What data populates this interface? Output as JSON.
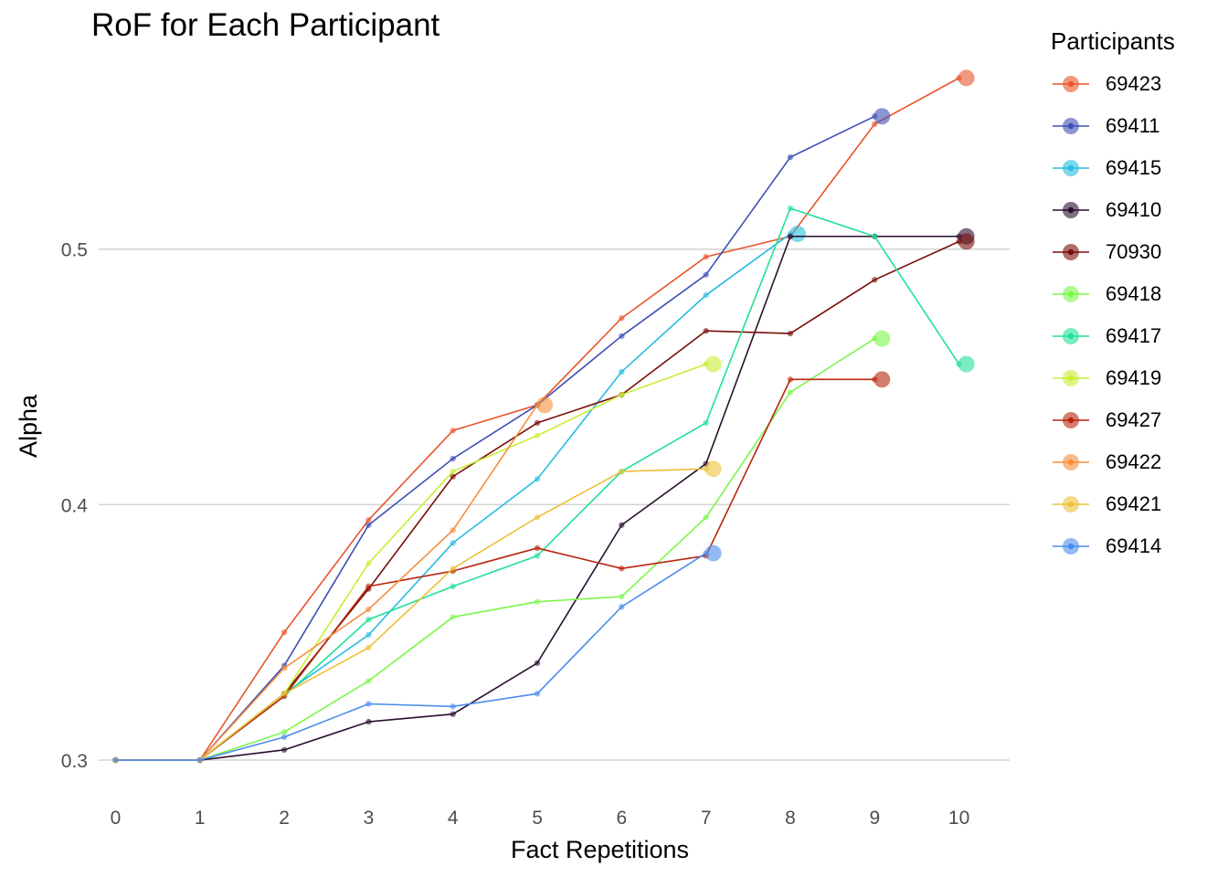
{
  "chart_data": {
    "type": "line",
    "title": "RoF for Each Participant",
    "xlabel": "Fact Repetitions",
    "ylabel": "Alpha",
    "x_ticks": [
      0,
      1,
      2,
      3,
      4,
      5,
      6,
      7,
      8,
      9,
      10
    ],
    "y_ticks": [
      "0.3",
      "0.4",
      "0.5"
    ],
    "xlim": [
      -0.2,
      10.6
    ],
    "ylim": [
      0.29,
      0.575
    ],
    "grid": "horizontal major lines",
    "legend": {
      "title": "Participants",
      "position": "right"
    },
    "series": [
      {
        "name": "69423",
        "color": "#E8552B",
        "x": [
          0,
          1,
          2,
          3,
          4,
          5,
          6,
          7,
          8,
          9,
          10
        ],
        "y": [
          0.3,
          0.3,
          0.35,
          0.394,
          0.429,
          0.439,
          0.473,
          0.497,
          0.505,
          0.549,
          0.567
        ]
      },
      {
        "name": "69411",
        "color": "#3F4FB5",
        "x": [
          0,
          1,
          2,
          3,
          4,
          5,
          6,
          7,
          8,
          9
        ],
        "y": [
          0.3,
          0.3,
          0.337,
          0.392,
          0.418,
          0.439,
          0.466,
          0.49,
          0.536,
          0.552
        ]
      },
      {
        "name": "69415",
        "color": "#28BCE0",
        "x": [
          0,
          1,
          2,
          3,
          4,
          5,
          6,
          7,
          8
        ],
        "y": [
          0.3,
          0.3,
          0.326,
          0.349,
          0.385,
          0.41,
          0.452,
          0.482,
          0.506
        ]
      },
      {
        "name": "69410",
        "color": "#2A0F30",
        "x": [
          0,
          1,
          2,
          3,
          4,
          5,
          6,
          7,
          8,
          9,
          10
        ],
        "y": [
          0.3,
          0.3,
          0.304,
          0.315,
          0.318,
          0.338,
          0.392,
          0.416,
          0.505,
          0.505,
          0.505
        ]
      },
      {
        "name": "70930",
        "color": "#7A0E0A",
        "x": [
          0,
          1,
          2,
          3,
          4,
          5,
          6,
          7,
          8,
          9,
          10
        ],
        "y": [
          0.3,
          0.3,
          0.326,
          0.367,
          0.411,
          0.432,
          0.443,
          0.468,
          0.467,
          0.488,
          0.503
        ]
      },
      {
        "name": "69418",
        "color": "#7CF64A",
        "x": [
          0,
          1,
          2,
          3,
          4,
          5,
          6,
          7,
          8,
          9
        ],
        "y": [
          0.3,
          0.3,
          0.311,
          0.331,
          0.356,
          0.362,
          0.364,
          0.395,
          0.444,
          0.465
        ]
      },
      {
        "name": "69417",
        "color": "#21E096",
        "x": [
          0,
          1,
          2,
          3,
          4,
          5,
          6,
          7,
          8,
          9,
          10
        ],
        "y": [
          0.3,
          0.3,
          0.325,
          0.355,
          0.368,
          0.38,
          0.413,
          0.432,
          0.516,
          0.505,
          0.455
        ]
      },
      {
        "name": "69419",
        "color": "#C8EF34",
        "x": [
          0,
          1,
          2,
          3,
          4,
          5,
          6,
          7
        ],
        "y": [
          0.3,
          0.3,
          0.326,
          0.377,
          0.413,
          0.427,
          0.443,
          0.455
        ]
      },
      {
        "name": "69427",
        "color": "#B8260E",
        "x": [
          0,
          1,
          2,
          3,
          4,
          5,
          6,
          7,
          8,
          9
        ],
        "y": [
          0.3,
          0.3,
          0.325,
          0.368,
          0.374,
          0.383,
          0.375,
          0.38,
          0.449,
          0.449
        ]
      },
      {
        "name": "69422",
        "color": "#F68D3C",
        "x": [
          0,
          1,
          2,
          3,
          4,
          5
        ],
        "y": [
          0.3,
          0.3,
          0.336,
          0.359,
          0.39,
          0.439
        ]
      },
      {
        "name": "69421",
        "color": "#EDC13A",
        "x": [
          0,
          1,
          2,
          3,
          4,
          5,
          6,
          7
        ],
        "y": [
          0.3,
          0.3,
          0.326,
          0.344,
          0.375,
          0.395,
          0.413,
          0.414
        ]
      },
      {
        "name": "69414",
        "color": "#4B8CEB",
        "x": [
          0,
          1,
          2,
          3,
          4,
          5,
          6,
          7
        ],
        "y": [
          0.3,
          0.3,
          0.309,
          0.322,
          0.321,
          0.326,
          0.36,
          0.381
        ]
      }
    ]
  }
}
